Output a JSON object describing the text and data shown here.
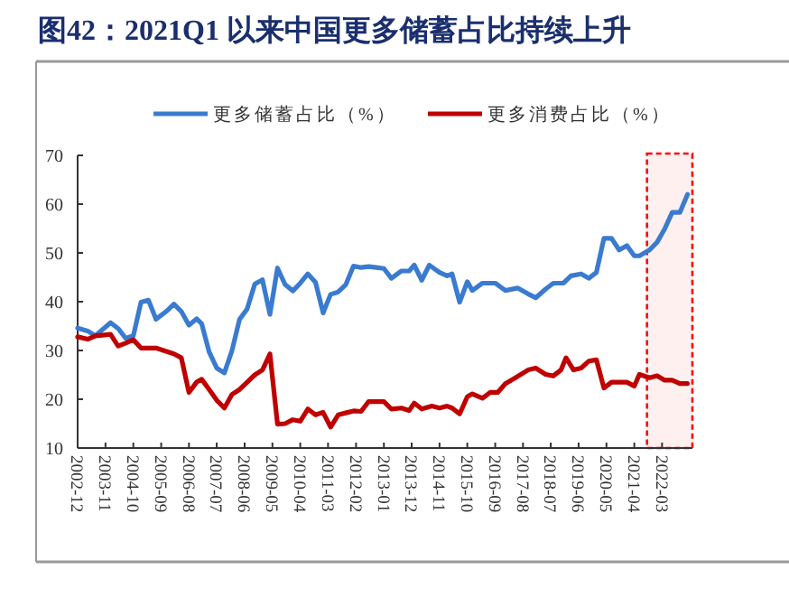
{
  "chart_data": {
    "type": "line",
    "title": "图42：2021Q1 以来中国更多储蓄占比持续上升",
    "legend": "top",
    "grid": false,
    "marker": "none",
    "line_style": "solid",
    "xlim": [
      "2002-12",
      "2023-03"
    ],
    "xticks": [
      "2002-12",
      "2003-11",
      "2004-10",
      "2005-09",
      "2006-08",
      "2007-07",
      "2008-06",
      "2009-05",
      "2010-04",
      "2011-03",
      "2012-02",
      "2013-01",
      "2013-12",
      "2014-11",
      "2015-10",
      "2016-09",
      "2017-08",
      "2018-07",
      "2019-06",
      "2020-05",
      "2021-04",
      "2022-03"
    ],
    "ylim": [
      10,
      70
    ],
    "yticks": [
      10,
      20,
      30,
      40,
      50,
      60,
      70
    ],
    "bands": [
      {
        "axis": "x",
        "from": "2021-09",
        "to": "2023-03",
        "color": "#ff0000"
      }
    ],
    "series": [
      {
        "name": "更多储蓄占比（%）",
        "color": "#3a7bd0",
        "x": [
          "2002-12",
          "2003-04",
          "2003-07",
          "2004-01",
          "2004-04",
          "2004-07",
          "2004-10",
          "2005-01",
          "2005-04",
          "2005-07",
          "2005-11",
          "2006-02",
          "2006-05",
          "2006-08",
          "2006-11",
          "2007-01",
          "2007-04",
          "2007-07",
          "2007-10",
          "2008-01",
          "2008-04",
          "2008-07",
          "2008-10",
          "2009-01",
          "2009-04",
          "2009-07",
          "2009-10",
          "2010-01",
          "2010-04",
          "2010-07",
          "2010-10",
          "2011-01",
          "2011-04",
          "2011-07",
          "2011-10",
          "2012-01",
          "2012-04",
          "2012-07",
          "2012-10",
          "2013-01",
          "2013-04",
          "2013-08",
          "2013-11",
          "2014-01",
          "2014-04",
          "2014-07",
          "2014-11",
          "2015-02",
          "2015-04",
          "2015-07",
          "2015-10",
          "2015-12",
          "2016-04",
          "2016-09",
          "2017-01",
          "2017-06",
          "2017-10",
          "2018-01",
          "2018-05",
          "2018-08",
          "2018-12",
          "2019-03",
          "2019-07",
          "2019-10",
          "2020-01",
          "2020-04",
          "2020-07",
          "2020-10",
          "2021-01",
          "2021-04",
          "2021-06",
          "2021-10",
          "2022-01",
          "2022-04",
          "2022-07",
          "2022-10",
          "2023-01"
        ],
        "values": [
          34.6,
          34,
          33,
          35.7,
          34.5,
          32.5,
          33,
          39.9,
          40.3,
          36.4,
          38,
          39.5,
          38,
          35.2,
          36.5,
          35.5,
          29.7,
          26.4,
          25.4,
          30,
          36.4,
          38.5,
          43.6,
          44.5,
          37.4,
          46.9,
          43.5,
          42.2,
          43.8,
          45.7,
          44,
          37.7,
          41.5,
          42,
          43.5,
          47.3,
          47,
          47.2,
          47,
          46.8,
          44.8,
          46.3,
          46.3,
          47.5,
          44.4,
          47.5,
          46,
          45.3,
          45.7,
          39.9,
          44.1,
          42.3,
          43.8,
          43.8,
          42.3,
          42.8,
          41.6,
          40.8,
          42.6,
          43.8,
          43.8,
          45.3,
          45.7,
          44.8,
          46,
          53,
          53,
          50.6,
          51.5,
          49.4,
          49.4,
          50.6,
          52.2,
          54.9,
          58.3,
          58.3,
          62
        ]
      },
      {
        "name": "更多消费占比（%）",
        "color": "#c00000",
        "x": [
          "2002-12",
          "2003-04",
          "2003-07",
          "2004-01",
          "2004-04",
          "2004-07",
          "2004-10",
          "2005-01",
          "2005-07",
          "2005-11",
          "2006-02",
          "2006-05",
          "2006-08",
          "2006-11",
          "2007-01",
          "2007-04",
          "2007-07",
          "2007-10",
          "2008-01",
          "2008-04",
          "2008-07",
          "2008-10",
          "2009-01",
          "2009-04",
          "2009-07",
          "2009-10",
          "2010-01",
          "2010-04",
          "2010-07",
          "2010-10",
          "2011-01",
          "2011-04",
          "2011-07",
          "2011-10",
          "2012-01",
          "2012-04",
          "2012-07",
          "2012-10",
          "2013-01",
          "2013-04",
          "2013-08",
          "2013-11",
          "2014-01",
          "2014-04",
          "2014-08",
          "2014-11",
          "2015-02",
          "2015-04",
          "2015-07",
          "2015-10",
          "2015-12",
          "2016-04",
          "2016-07",
          "2016-10",
          "2017-01",
          "2017-05",
          "2017-10",
          "2018-01",
          "2018-05",
          "2018-08",
          "2018-11",
          "2019-01",
          "2019-04",
          "2019-07",
          "2019-10",
          "2020-01",
          "2020-04",
          "2020-07",
          "2020-10",
          "2021-01",
          "2021-04",
          "2021-06",
          "2021-10",
          "2022-01",
          "2022-04",
          "2022-07",
          "2022-10",
          "2023-01"
        ],
        "values": [
          32.8,
          32.3,
          33,
          33.3,
          30.9,
          31.5,
          32.2,
          30.5,
          30.5,
          29.8,
          29.3,
          28.5,
          21.4,
          23.5,
          24.1,
          22,
          19.8,
          18.2,
          21,
          22,
          23.5,
          25,
          26,
          29.3,
          14.9,
          15,
          15.8,
          15.5,
          18,
          16.8,
          17.3,
          14.3,
          16.8,
          17.2,
          17.6,
          17.5,
          19.5,
          19.5,
          19.5,
          18,
          18.2,
          17.7,
          19.2,
          18,
          18.6,
          18.2,
          18.6,
          18.2,
          17,
          20.5,
          21.1,
          20.2,
          21.4,
          21.4,
          23.2,
          24.4,
          26,
          26.4,
          25.1,
          24.8,
          26,
          28.5,
          26,
          26.4,
          27.8,
          28.1,
          22.3,
          23.5,
          23.5,
          23.5,
          22.7,
          25.1,
          24.4,
          24.8,
          23.9,
          23.9,
          23.2,
          23.2
        ]
      }
    ]
  }
}
